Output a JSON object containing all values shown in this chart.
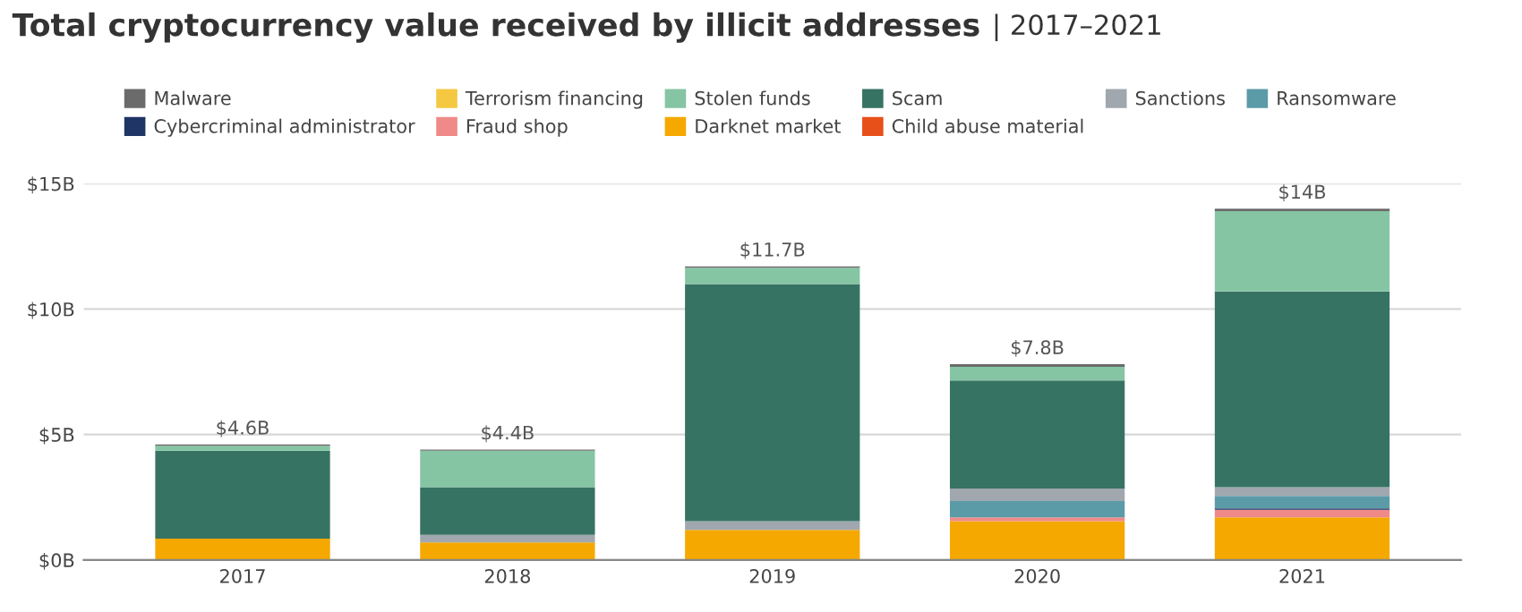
{
  "chart_data": {
    "type": "bar",
    "stacked": true,
    "title": "Total cryptocurrency value received by illicit addresses",
    "subtitle": "| 2017–2021",
    "categories": [
      "2017",
      "2018",
      "2019",
      "2020",
      "2021"
    ],
    "series": [
      {
        "name": "Child abuse material",
        "color": "#e8501a",
        "values": [
          0,
          0,
          0,
          0,
          0
        ]
      },
      {
        "name": "Darknet market",
        "color": "#f5a800",
        "values": [
          0.85,
          0.7,
          1.2,
          1.55,
          1.7
        ]
      },
      {
        "name": "Fraud shop",
        "color": "#ef8a88",
        "values": [
          0,
          0,
          0,
          0.15,
          0.3
        ]
      },
      {
        "name": "Cybercriminal administrator",
        "color": "#1f3566",
        "values": [
          0,
          0,
          0,
          0,
          0.05
        ]
      },
      {
        "name": "Ransomware",
        "color": "#5b9ba8",
        "values": [
          0,
          0,
          0,
          0.65,
          0.5
        ]
      },
      {
        "name": "Sanctions",
        "color": "#a0a7ae",
        "values": [
          0,
          0.3,
          0.35,
          0.5,
          0.35
        ]
      },
      {
        "name": "Scam",
        "color": "#367363",
        "values": [
          3.5,
          1.9,
          9.45,
          4.3,
          7.8
        ]
      },
      {
        "name": "Stolen funds",
        "color": "#86c5a4",
        "values": [
          0.2,
          1.45,
          0.65,
          0.55,
          3.2
        ]
      },
      {
        "name": "Terrorism financing",
        "color": "#f5c842",
        "values": [
          0,
          0,
          0,
          0,
          0
        ]
      },
      {
        "name": "Malware",
        "color": "#6b6b6b",
        "values": [
          0.05,
          0.05,
          0.05,
          0.1,
          0.1
        ]
      }
    ],
    "totals": [
      "$4.6B",
      "$4.4B",
      "$11.7B",
      "$7.8B",
      "$14B"
    ],
    "ylim": [
      0,
      15
    ],
    "yticks": [
      {
        "value": 0,
        "label": "$0B"
      },
      {
        "value": 5,
        "label": "$5B"
      },
      {
        "value": 10,
        "label": "$10B"
      },
      {
        "value": 15,
        "label": "$15B"
      }
    ],
    "grid": "y",
    "legend": "top"
  }
}
